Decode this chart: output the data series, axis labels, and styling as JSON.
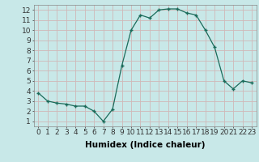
{
  "x": [
    0,
    1,
    2,
    3,
    4,
    5,
    6,
    7,
    8,
    9,
    10,
    11,
    12,
    13,
    14,
    15,
    16,
    17,
    18,
    19,
    20,
    21,
    22,
    23
  ],
  "y": [
    3.8,
    3.0,
    2.8,
    2.7,
    2.5,
    2.5,
    2.0,
    1.0,
    2.2,
    6.5,
    10.0,
    11.5,
    11.2,
    12.0,
    12.1,
    12.1,
    11.7,
    11.5,
    10.0,
    8.3,
    5.0,
    4.2,
    5.0,
    4.8
  ],
  "line_color": "#1a6b5a",
  "marker": "+",
  "bg_color": "#c8e8e8",
  "grid_color": "#d0b8b8",
  "xlabel": "Humidex (Indice chaleur)",
  "xlim": [
    -0.5,
    23.5
  ],
  "ylim": [
    0.5,
    12.5
  ],
  "yticks": [
    1,
    2,
    3,
    4,
    5,
    6,
    7,
    8,
    9,
    10,
    11,
    12
  ],
  "xticks": [
    0,
    1,
    2,
    3,
    4,
    5,
    6,
    7,
    8,
    9,
    10,
    11,
    12,
    13,
    14,
    15,
    16,
    17,
    18,
    19,
    20,
    21,
    22,
    23
  ],
  "tick_fontsize": 6.5,
  "label_fontsize": 7.5
}
